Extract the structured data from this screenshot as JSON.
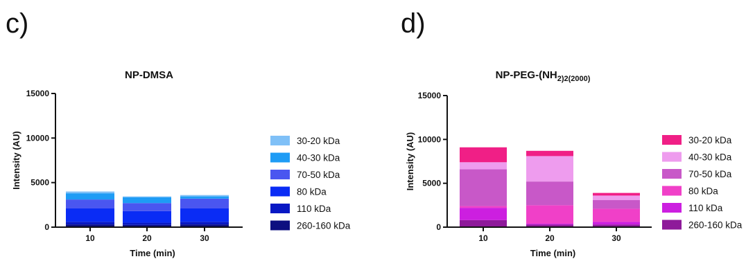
{
  "panels": [
    {
      "letter": "c)"
    },
    {
      "letter": "d)"
    }
  ],
  "chart_data": [
    {
      "type": "bar",
      "stacked": true,
      "title": "NP-DMSA",
      "title_sub": "",
      "title_suffix": "",
      "xlabel": "Time (min)",
      "ylabel": "Intensity (AU)",
      "ylim": [
        0,
        15000
      ],
      "yticks": [
        "0",
        "5000",
        "10000",
        "15000"
      ],
      "categories": [
        "10",
        "20",
        "30"
      ],
      "legend_position": "right",
      "series": [
        {
          "name": "260-160 kDa",
          "color": "#0d0f80",
          "values": [
            300,
            250,
            300
          ]
        },
        {
          "name": "110 kDa",
          "color": "#0818c4",
          "values": [
            300,
            250,
            300
          ]
        },
        {
          "name": "80 kDa",
          "color": "#0a2cf5",
          "values": [
            1500,
            1300,
            1500
          ]
        },
        {
          "name": "70-50 kDa",
          "color": "#4a56f0",
          "values": [
            1000,
            900,
            1100
          ]
        },
        {
          "name": "40-30 kDa",
          "color": "#1e9cf5",
          "values": [
            700,
            650,
            250
          ]
        },
        {
          "name": "30-20 kDa",
          "color": "#7fc0f7",
          "values": [
            200,
            100,
            150
          ]
        }
      ]
    },
    {
      "type": "bar",
      "stacked": true,
      "title": "NP-PEG-(NH",
      "title_sub": "2",
      "title_suffix": ")2(2000)",
      "xlabel": "Time (min)",
      "ylabel": "Intensity (AU)",
      "ylim": [
        0,
        15000
      ],
      "yticks": [
        "0",
        "5000",
        "10000",
        "15000"
      ],
      "categories": [
        "10",
        "20",
        "30"
      ],
      "legend_position": "right",
      "series": [
        {
          "name": "260-160 kDa",
          "color": "#8e1a9a",
          "values": [
            800,
            300,
            300
          ]
        },
        {
          "name": "110 kDa",
          "color": "#cc1fe0",
          "values": [
            1400,
            100,
            300
          ]
        },
        {
          "name": "80 kDa",
          "color": "#f040c8",
          "values": [
            200,
            2100,
            1500
          ]
        },
        {
          "name": "70-50 kDa",
          "color": "#c858c8",
          "values": [
            4200,
            2700,
            1000
          ]
        },
        {
          "name": "40-30 kDa",
          "color": "#ee9cee",
          "values": [
            800,
            2900,
            500
          ]
        },
        {
          "name": "30-20 kDa",
          "color": "#f01f86",
          "values": [
            1700,
            600,
            300
          ]
        }
      ]
    }
  ]
}
